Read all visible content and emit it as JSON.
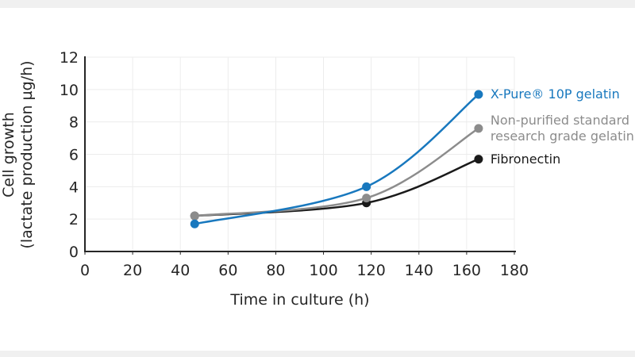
{
  "page": {
    "background": "#ffffff",
    "letterbox_color": "#f0f0f0"
  },
  "chart_data": {
    "type": "line",
    "title": "",
    "xlabel": "Time in culture (h)",
    "ylabel": "Cell growth (lactate production µg/h)",
    "ylabel_lines": [
      "Cell growth",
      "(lactate production µg/h)"
    ],
    "xlim": [
      0,
      180
    ],
    "ylim": [
      0,
      12
    ],
    "x_ticks": [
      0,
      20,
      40,
      60,
      80,
      100,
      120,
      140,
      160,
      180
    ],
    "y_ticks": [
      0,
      2,
      4,
      6,
      8,
      10,
      12
    ],
    "grid": true,
    "line_style": "smoothed",
    "legend_position": "right-of-last-point",
    "x": [
      46,
      118,
      165
    ],
    "series": [
      {
        "name": "X-Pure® 10P gelatin",
        "label_lines": [
          "X-Pure® 10P gelatin"
        ],
        "color": "#1878be",
        "values": [
          1.7,
          4.0,
          9.7
        ]
      },
      {
        "name": "Non-purified standard research grade gelatin",
        "label_lines": [
          "Non-purified standard",
          "research grade gelatin"
        ],
        "color": "#8c8c8c",
        "values": [
          2.2,
          3.3,
          7.6
        ]
      },
      {
        "name": "Fibronectin",
        "label_lines": [
          "Fibronectin"
        ],
        "color": "#1a1a1a",
        "values": [
          2.2,
          3.0,
          5.7
        ]
      }
    ],
    "axis_color": "#262626",
    "grid_color": "#ececec",
    "tick_label_color": "#262626"
  }
}
